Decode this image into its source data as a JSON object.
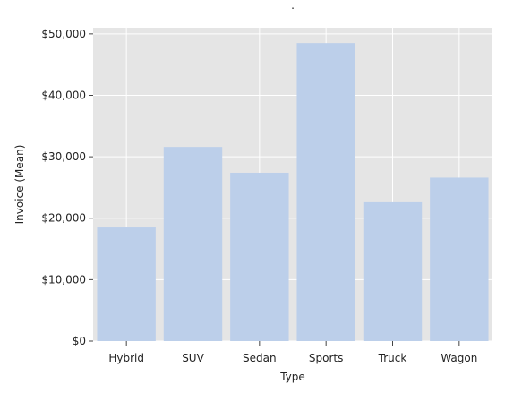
{
  "chart_data": {
    "type": "bar",
    "title": ".",
    "xlabel": "Type",
    "ylabel": "Invoice (Mean)",
    "categories": [
      "Hybrid",
      "SUV",
      "Sedan",
      "Sports",
      "Truck",
      "Wagon"
    ],
    "values": [
      18500,
      31600,
      27400,
      48500,
      22600,
      26600
    ],
    "ylim": [
      0,
      51000
    ],
    "yticks": [
      0,
      10000,
      20000,
      30000,
      40000,
      50000
    ],
    "ytick_labels": [
      "$0",
      "$10,000",
      "$20,000",
      "$30,000",
      "$40,000",
      "$50,000"
    ],
    "grid": true,
    "legend": "none",
    "colors": {
      "bar": "#bccfea",
      "plot_background": "#e5e5e5",
      "grid": "#ffffff"
    }
  }
}
